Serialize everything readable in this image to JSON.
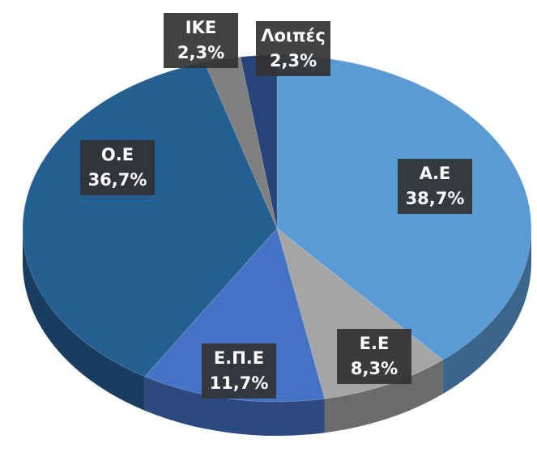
{
  "chart_data": {
    "type": "pie",
    "categories": [
      "Α.Ε",
      "Ε.Ε",
      "Ε.Π.Ε",
      "Ο.Ε",
      "ΙΚΕ",
      "Λοιπές"
    ],
    "values": [
      38.7,
      8.3,
      11.7,
      36.7,
      2.3,
      2.3
    ],
    "value_labels": [
      "38,7%",
      "8,3%",
      "11,7%",
      "36,7%",
      "2,3%",
      "2,3%"
    ],
    "colors": [
      "#5b9bd5",
      "#a5a5a5",
      "#4472c4",
      "#255e91",
      "#7f7f7f",
      "#264478"
    ]
  }
}
